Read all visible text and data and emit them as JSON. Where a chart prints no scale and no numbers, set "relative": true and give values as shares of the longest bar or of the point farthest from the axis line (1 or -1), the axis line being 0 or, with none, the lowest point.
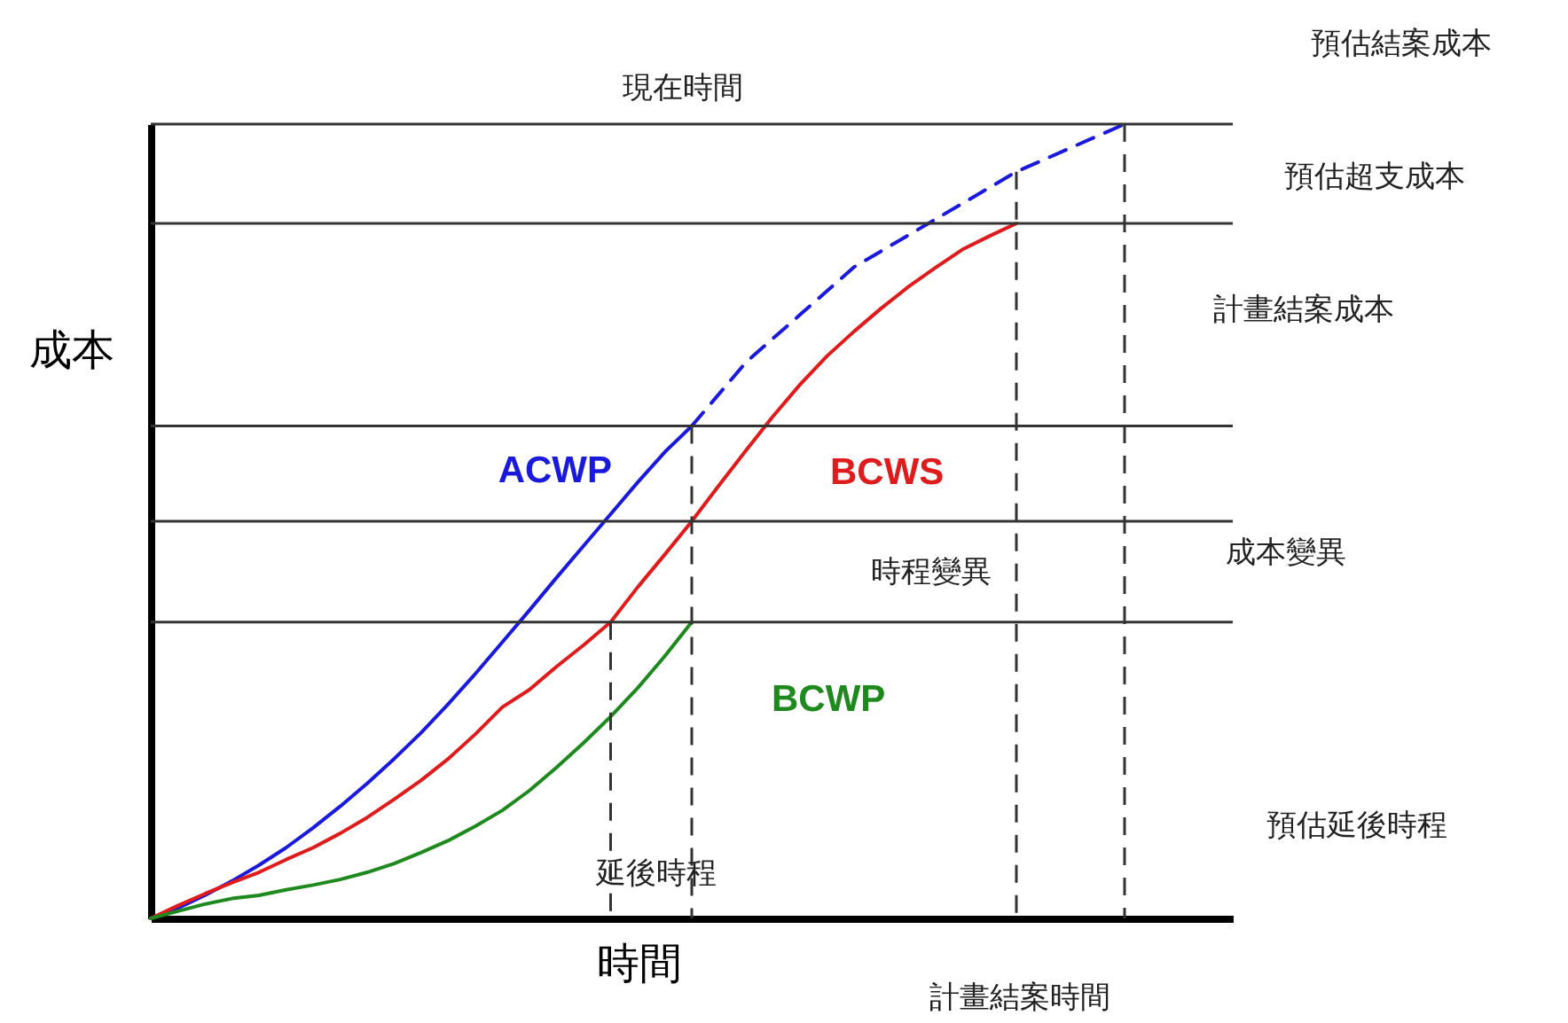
{
  "chart_data": {
    "type": "line",
    "relative": true,
    "xlabel": "時間",
    "ylabel": "成本",
    "categories": [
      null,
      null,
      null,
      null,
      null,
      null,
      null,
      null,
      null,
      null,
      null,
      null,
      null,
      null,
      null,
      null,
      null,
      null,
      null,
      null,
      null,
      null,
      null,
      null,
      null,
      null,
      null,
      null,
      null,
      null,
      null,
      null,
      null,
      null,
      null,
      null,
      null,
      null,
      null,
      null,
      null
    ],
    "series": [
      {
        "name": "ACWP",
        "color": "#1a1adc",
        "line_style": "solid",
        "values": [
          0,
          0.013,
          0.029,
          0.047,
          0.067,
          0.089,
          0.114,
          0.141,
          0.17,
          0.201,
          0.234,
          0.27,
          0.308,
          0.348,
          0.388,
          0.429,
          0.469,
          0.509,
          0.549,
          0.587,
          0.62,
          null,
          null,
          null,
          null,
          null,
          null,
          null,
          null,
          null,
          null,
          null,
          null,
          null,
          null,
          null,
          null,
          null,
          null,
          null,
          null
        ]
      },
      {
        "color": "#1a1adc",
        "line_style": "dashed",
        "values": [
          null,
          null,
          null,
          null,
          null,
          null,
          null,
          null,
          null,
          null,
          null,
          null,
          null,
          null,
          null,
          null,
          null,
          null,
          null,
          null,
          0.62,
          0.66,
          0.7,
          0.73,
          0.76,
          0.79,
          0.82,
          0.84,
          0.86,
          0.88,
          0.9,
          0.92,
          0.94,
          0.955,
          0.97,
          0.985,
          1,
          null,
          null,
          null,
          null
        ]
      },
      {
        "name": "BCWS",
        "color": "#e01b1b",
        "line_style": "solid",
        "values": [
          0,
          0.016,
          0.031,
          0.045,
          0.058,
          0.074,
          0.089,
          0.107,
          0.127,
          0.15,
          0.174,
          0.201,
          0.232,
          0.266,
          0.288,
          0.317,
          0.344,
          0.373,
          0.417,
          0.458,
          0.5,
          0.545,
          0.589,
          0.632,
          0.672,
          0.708,
          0.739,
          0.768,
          0.795,
          0.819,
          0.842,
          0.859,
          0.875,
          null,
          null,
          null,
          null,
          null,
          null,
          null,
          null
        ]
      },
      {
        "name": "BCWP",
        "color": "#1e8a1e",
        "line_style": "solid",
        "values": [
          0,
          0.009,
          0.018,
          0.025,
          0.029,
          0.036,
          0.042,
          0.049,
          0.058,
          0.069,
          0.083,
          0.098,
          0.116,
          0.136,
          0.161,
          0.19,
          0.221,
          0.254,
          0.29,
          0.33,
          0.373,
          null,
          null,
          null,
          null,
          null,
          null,
          null,
          null,
          null,
          null,
          null,
          null,
          null,
          null,
          null,
          null,
          null,
          null,
          null,
          null
        ]
      }
    ],
    "ref_lines": [
      {
        "axis": "y",
        "value": 1,
        "color": "#333333",
        "line_style": "solid"
      },
      {
        "axis": "y",
        "value": 0.875,
        "color": "#333333",
        "line_style": "solid"
      },
      {
        "axis": "y",
        "value": 0.62,
        "color": "#333333",
        "line_style": "solid"
      },
      {
        "axis": "y",
        "value": 0.5,
        "color": "#333333",
        "line_style": "solid"
      },
      {
        "axis": "y",
        "value": 0.373,
        "color": "#333333",
        "line_style": "solid"
      }
    ],
    "annotations": [
      "現在時間",
      "預估結案成本",
      "預估超支成本",
      "計畫結案成本",
      "成本變異",
      "時程變異",
      "延後時程",
      "預估延後時程",
      "計畫結案時間"
    ],
    "grid": false,
    "marker": "none",
    "tick_labels": false
  }
}
